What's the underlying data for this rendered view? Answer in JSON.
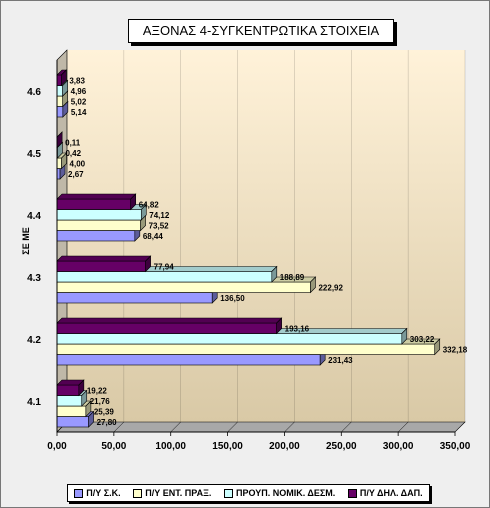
{
  "chart_data": {
    "type": "bar",
    "orientation": "horizontal",
    "title": "ΑΞΟΝΑΣ 4-ΣΥΓΚΕΝΤΡΩΤΙΚΑ ΣΤΟΙΧΕΙΑ",
    "ylabel": "ΣΕ ΜΕ",
    "xlabel": "",
    "xlim": [
      0,
      350
    ],
    "xticks": [
      "0,00",
      "50,00",
      "100,00",
      "150,00",
      "200,00",
      "250,00",
      "300,00",
      "350,00"
    ],
    "grid": true,
    "legend_position": "bottom",
    "categories": [
      "4.1",
      "4.2",
      "4.3",
      "4.4",
      "4.5",
      "4.6"
    ],
    "series": [
      {
        "name": "Π/Υ Σ.Κ.",
        "color": "#9999ff",
        "values": [
          27.8,
          231.43,
          136.5,
          68.44,
          2.67,
          5.14
        ],
        "labels": [
          "27,80",
          "231,43",
          "136,50",
          "68,44",
          "2,67",
          "5,14"
        ]
      },
      {
        "name": "Π/Υ ΕΝΤ. ΠΡΑΞ.",
        "color": "#ffffcc",
        "values": [
          25.39,
          332.18,
          222.92,
          73.52,
          4.0,
          5.02
        ],
        "labels": [
          "25,39",
          "332,18",
          "222,92",
          "73,52",
          "4,00",
          "5,02"
        ]
      },
      {
        "name": "ΠΡΟΥΠ. ΝΟΜΙΚ. ΔΕΣΜ.",
        "color": "#ccffff",
        "values": [
          21.76,
          303.22,
          188.89,
          74.12,
          0.42,
          4.96
        ],
        "labels": [
          "21,76",
          "303,22",
          "188,89",
          "74,12",
          "0,42",
          "4,96"
        ]
      },
      {
        "name": "Π/Υ ΔΗΛ. ΔΑΠ.",
        "color": "#660066",
        "values": [
          19.22,
          193.16,
          77.94,
          64.82,
          0.11,
          3.83
        ],
        "labels": [
          "19,22",
          "193,16",
          "77,94",
          "64,82",
          "0,11",
          "3,83"
        ]
      }
    ]
  }
}
